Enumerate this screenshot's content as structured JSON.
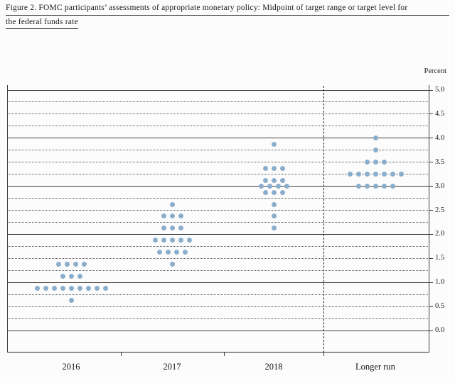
{
  "figure": {
    "title_line1": "Figure 2. FOMC participants’ assessments of appropriate monetary policy: Midpoint of target range or target level for",
    "title_line2": "the federal funds rate"
  },
  "chart_data": {
    "type": "scatter",
    "title": "Figure 2. FOMC participants’ assessments of appropriate monetary policy: Midpoint of target range or target level for the federal funds rate",
    "ylabel": "Percent",
    "xlabel": "",
    "ylim": [
      0.0,
      5.0
    ],
    "grid_interval": 0.25,
    "label_interval": 0.5,
    "grid_style": "solid lines at whole percents, dotted lines at quarter percents",
    "legend": "none",
    "dot_color": "#8badcc",
    "ytick_labels": [
      "5.0",
      "4.5",
      "4.0",
      "3.5",
      "3.0",
      "2.5",
      "2.0",
      "1.5",
      "1.0",
      "0.5",
      "0.0"
    ],
    "categories": [
      "2016",
      "2017",
      "2018",
      "Longer run"
    ],
    "separator_after_category": "2018",
    "columns": [
      {
        "label": "2016",
        "dots": [
          {
            "rate": 1.375,
            "count": 4
          },
          {
            "rate": 1.125,
            "count": 3
          },
          {
            "rate": 0.875,
            "count": 9
          },
          {
            "rate": 0.625,
            "count": 1
          }
        ]
      },
      {
        "label": "2017",
        "dots": [
          {
            "rate": 2.625,
            "count": 1
          },
          {
            "rate": 2.375,
            "count": 3
          },
          {
            "rate": 2.125,
            "count": 3
          },
          {
            "rate": 1.875,
            "count": 5
          },
          {
            "rate": 1.625,
            "count": 4
          },
          {
            "rate": 1.375,
            "count": 1
          }
        ]
      },
      {
        "label": "2018",
        "dots": [
          {
            "rate": 3.875,
            "count": 1
          },
          {
            "rate": 3.375,
            "count": 3
          },
          {
            "rate": 3.125,
            "count": 3
          },
          {
            "rate": 3.0,
            "count": 4
          },
          {
            "rate": 2.875,
            "count": 3
          },
          {
            "rate": 2.625,
            "count": 1
          },
          {
            "rate": 2.375,
            "count": 1
          },
          {
            "rate": 2.125,
            "count": 1
          }
        ]
      },
      {
        "label": "Longer run",
        "dots": [
          {
            "rate": 4.0,
            "count": 1
          },
          {
            "rate": 3.75,
            "count": 1
          },
          {
            "rate": 3.5,
            "count": 3
          },
          {
            "rate": 3.25,
            "count": 7
          },
          {
            "rate": 3.0,
            "count": 5
          }
        ]
      }
    ]
  }
}
